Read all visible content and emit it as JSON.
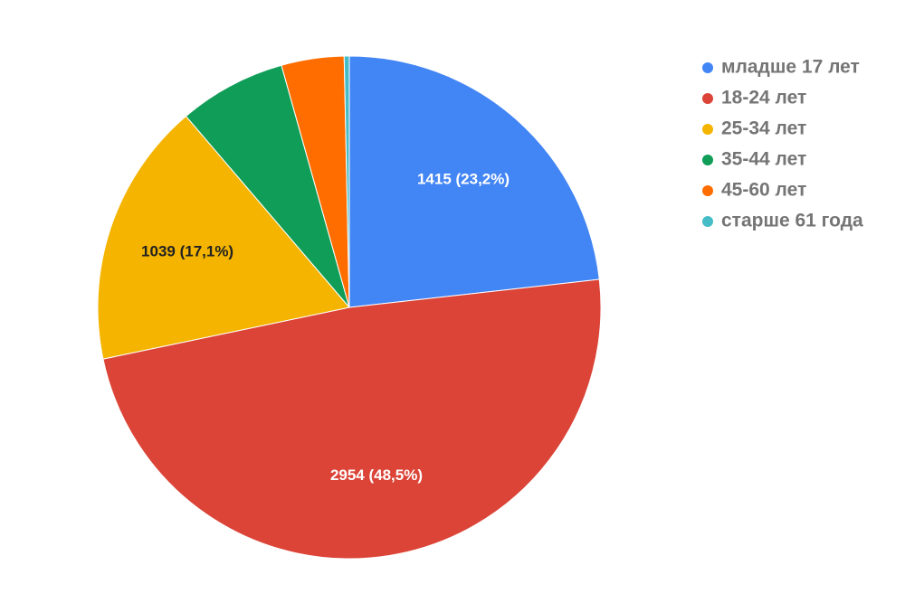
{
  "chart_data": {
    "type": "pie",
    "categories": [
      "младше 17 лет",
      "18-24 лет",
      "25-34 лет",
      "35-44 лет",
      "45-60 лет",
      "старше 61 года"
    ],
    "values": [
      1415,
      2954,
      1039,
      420,
      245,
      20
    ],
    "value_labels": [
      "1415 (23,2%)",
      "2954 (48,5%)",
      "1039 (17,1%)",
      null,
      null,
      null
    ],
    "colors": [
      "#4285f4",
      "#db4437",
      "#f4b400",
      "#0f9d58",
      "#ff6d00",
      "#46bdc6"
    ],
    "legend": "right"
  }
}
